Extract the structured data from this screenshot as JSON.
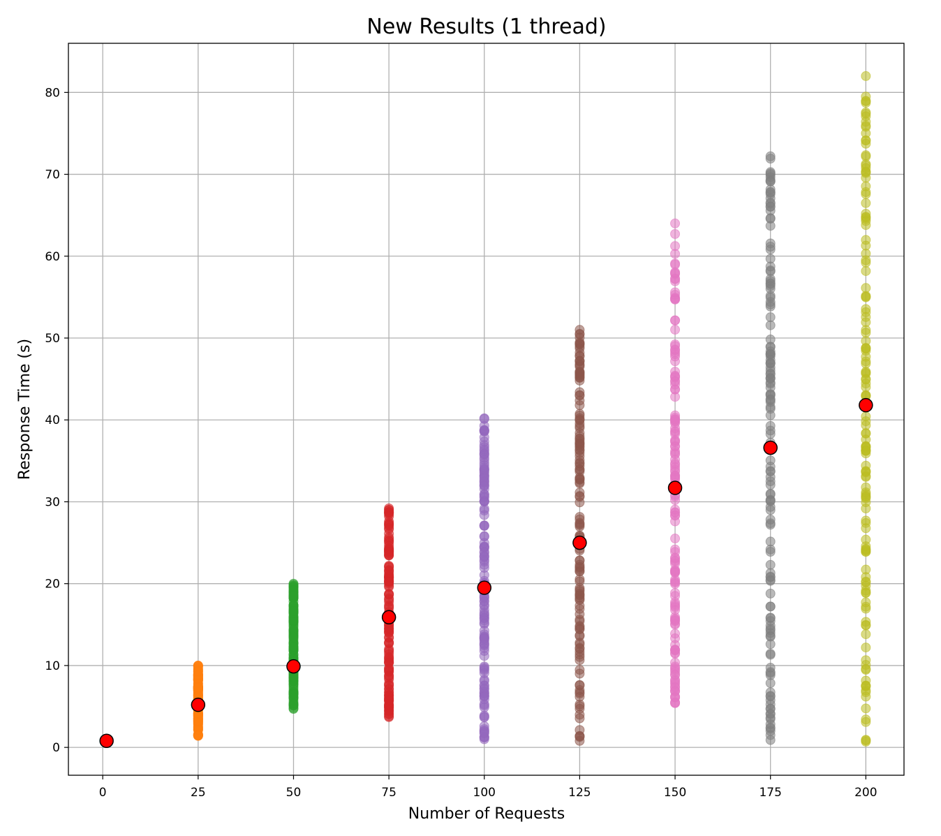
{
  "chart_data": {
    "type": "scatter",
    "title": "New Results (1 thread)",
    "xlabel": "Number of Requests",
    "ylabel": "Response Time (s)",
    "xlim": [
      -9,
      210
    ],
    "ylim": [
      -3.4,
      86
    ],
    "xticks": [
      0,
      25,
      50,
      75,
      100,
      125,
      150,
      175,
      200
    ],
    "yticks": [
      0,
      10,
      20,
      30,
      40,
      50,
      60,
      70,
      80
    ],
    "grid": true,
    "legend": "none",
    "series": [
      {
        "x": 25,
        "ymin": 1.4,
        "ymax": 10.0,
        "color": "#ff7f0e"
      },
      {
        "x": 50,
        "ymin": 4.7,
        "ymax": 20.0,
        "color": "#2ca02c"
      },
      {
        "x": 75,
        "ymin": 3.7,
        "ymax": 29.2,
        "color": "#d62728"
      },
      {
        "x": 100,
        "ymin": 1.0,
        "ymax": 40.2,
        "color": "#9467bd"
      },
      {
        "x": 125,
        "ymin": 0.8,
        "ymax": 51.0,
        "color": "#8c564b"
      },
      {
        "x": 150,
        "ymin": 5.4,
        "ymax": 64.0,
        "color": "#e377c2"
      },
      {
        "x": 175,
        "ymin": 0.9,
        "ymax": 72.2,
        "color": "#7f7f7f"
      },
      {
        "x": 200,
        "ymin": 0.7,
        "ymax": 82.0,
        "color": "#bcbd22"
      }
    ],
    "means": {
      "color": "#ff0000",
      "x": [
        1,
        25,
        50,
        75,
        100,
        125,
        150,
        175,
        200
      ],
      "y": [
        0.8,
        5.2,
        9.9,
        15.9,
        19.5,
        25.0,
        31.7,
        36.6,
        41.8
      ]
    }
  }
}
